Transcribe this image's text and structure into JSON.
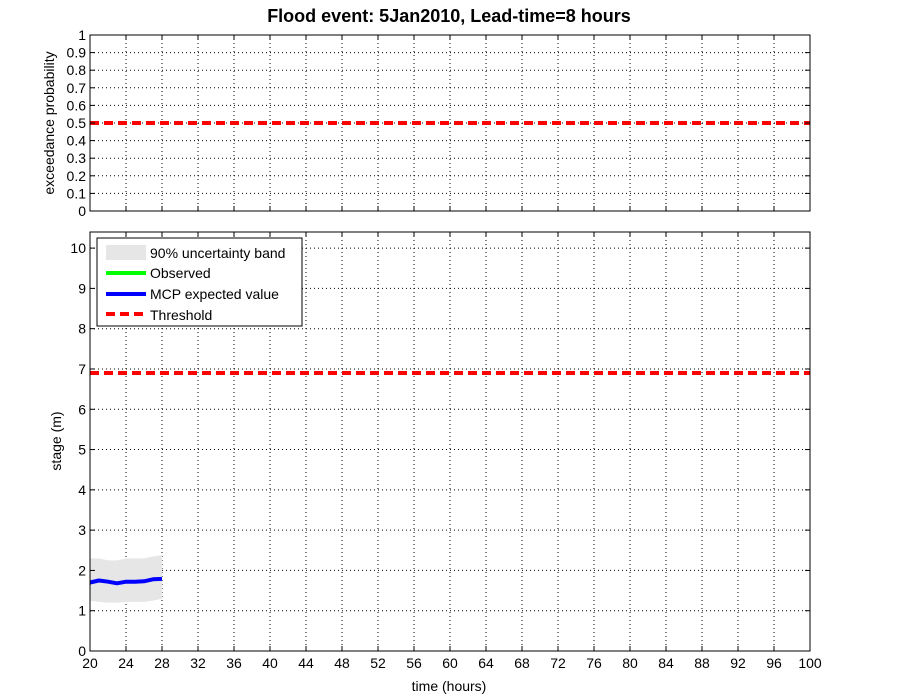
{
  "window": {
    "title": "Flood event: 5Jan2010, Lead-time=8 hours"
  },
  "chart_data": [
    {
      "type": "line",
      "panel": "top",
      "title": "Flood event: 5Jan2010, Lead-time=8 hours",
      "xlabel": "",
      "ylabel": "exceedance probability",
      "xlim": [
        20,
        100
      ],
      "ylim": [
        0,
        1
      ],
      "grid": true,
      "x_ticks": [
        20,
        24,
        28,
        32,
        36,
        40,
        44,
        48,
        52,
        56,
        60,
        64,
        68,
        72,
        76,
        80,
        84,
        88,
        92,
        96,
        100
      ],
      "y_ticks": [
        0,
        0.1,
        0.2,
        0.3,
        0.4,
        0.5,
        0.6,
        0.7,
        0.8,
        0.9,
        1
      ],
      "y_tick_labels": [
        "0",
        "0.1",
        "0.2",
        "0.3",
        "0.4",
        "0.5",
        "0.6",
        "0.7",
        "0.8",
        "0.9",
        "1"
      ],
      "series": [
        {
          "color": "#ff0000",
          "style": "dashed",
          "x": [
            20,
            100
          ],
          "y": [
            0.5,
            0.5
          ]
        }
      ]
    },
    {
      "type": "line",
      "panel": "bottom",
      "title": "",
      "xlabel": "time (hours)",
      "ylabel": "stage (m)",
      "xlim": [
        20,
        100
      ],
      "ylim": [
        0,
        10.4
      ],
      "grid": true,
      "legend_position": "top-left",
      "x_ticks": [
        20,
        24,
        28,
        32,
        36,
        40,
        44,
        48,
        52,
        56,
        60,
        64,
        68,
        72,
        76,
        80,
        84,
        88,
        92,
        96,
        100
      ],
      "x_tick_labels": [
        "20",
        "24",
        "28",
        "32",
        "36",
        "40",
        "44",
        "48",
        "52",
        "56",
        "60",
        "64",
        "68",
        "72",
        "76",
        "80",
        "84",
        "88",
        "92",
        "96",
        "100"
      ],
      "y_ticks": [
        0,
        1,
        2,
        3,
        4,
        5,
        6,
        7,
        8,
        9,
        10
      ],
      "y_tick_labels": [
        "0",
        "1",
        "2",
        "3",
        "4",
        "5",
        "6",
        "7",
        "8",
        "9",
        "10"
      ],
      "series": [
        {
          "name": "90% uncertainty band",
          "kind": "band",
          "color": "#e6e6e6",
          "x": [
            20,
            21,
            22,
            23,
            24,
            25,
            26,
            27,
            28
          ],
          "lower": [
            1.25,
            1.22,
            1.2,
            1.2,
            1.22,
            1.22,
            1.22,
            1.25,
            1.3
          ],
          "upper": [
            2.3,
            2.3,
            2.25,
            2.25,
            2.3,
            2.3,
            2.3,
            2.35,
            2.38
          ]
        },
        {
          "name": "Observed",
          "color": "#00ff00",
          "style": "solid",
          "x": [],
          "y": []
        },
        {
          "name": "MCP expected value",
          "color": "#0000ff",
          "style": "solid",
          "x": [
            20,
            21,
            22,
            23,
            24,
            25,
            26,
            27,
            28
          ],
          "y": [
            1.7,
            1.75,
            1.72,
            1.68,
            1.72,
            1.72,
            1.73,
            1.78,
            1.79
          ]
        },
        {
          "name": "Threshold",
          "color": "#ff0000",
          "style": "dashed",
          "x": [
            20,
            100
          ],
          "y": [
            6.9,
            6.9
          ]
        }
      ]
    }
  ]
}
